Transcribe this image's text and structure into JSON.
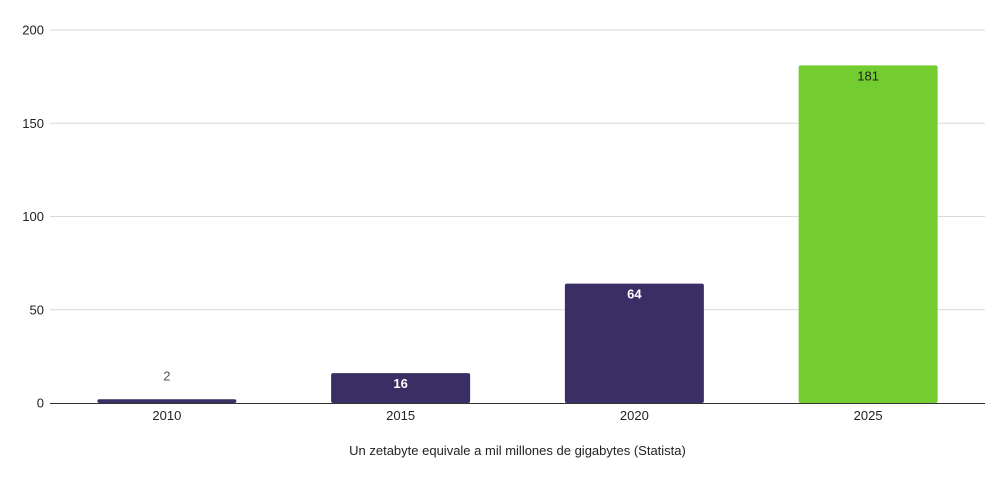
{
  "chart_data": {
    "type": "bar",
    "categories": [
      "2010",
      "2015",
      "2020",
      "2025"
    ],
    "values": [
      2,
      16,
      64,
      181
    ],
    "data_labels": [
      "2",
      "16",
      "64",
      "181"
    ],
    "bar_colors": [
      "#3a2e64",
      "#3a2e64",
      "#3a2e64",
      "#74cd30"
    ],
    "data_label_colors": [
      "#555555",
      "#ffffff",
      "#ffffff",
      "#222222"
    ],
    "ylim": [
      0,
      200
    ],
    "yticks": [
      "0",
      "50",
      "100",
      "150",
      "200"
    ],
    "ytick_values": [
      0,
      50,
      100,
      150,
      200
    ],
    "xlabel": "Un zetabyte equivale a mil millones de gigabytes (Statista)",
    "ylabel": "",
    "title": "",
    "grid": true,
    "legend": "none",
    "colors": {
      "gridline": "#d9d9d9",
      "baseline": "#333333"
    }
  }
}
